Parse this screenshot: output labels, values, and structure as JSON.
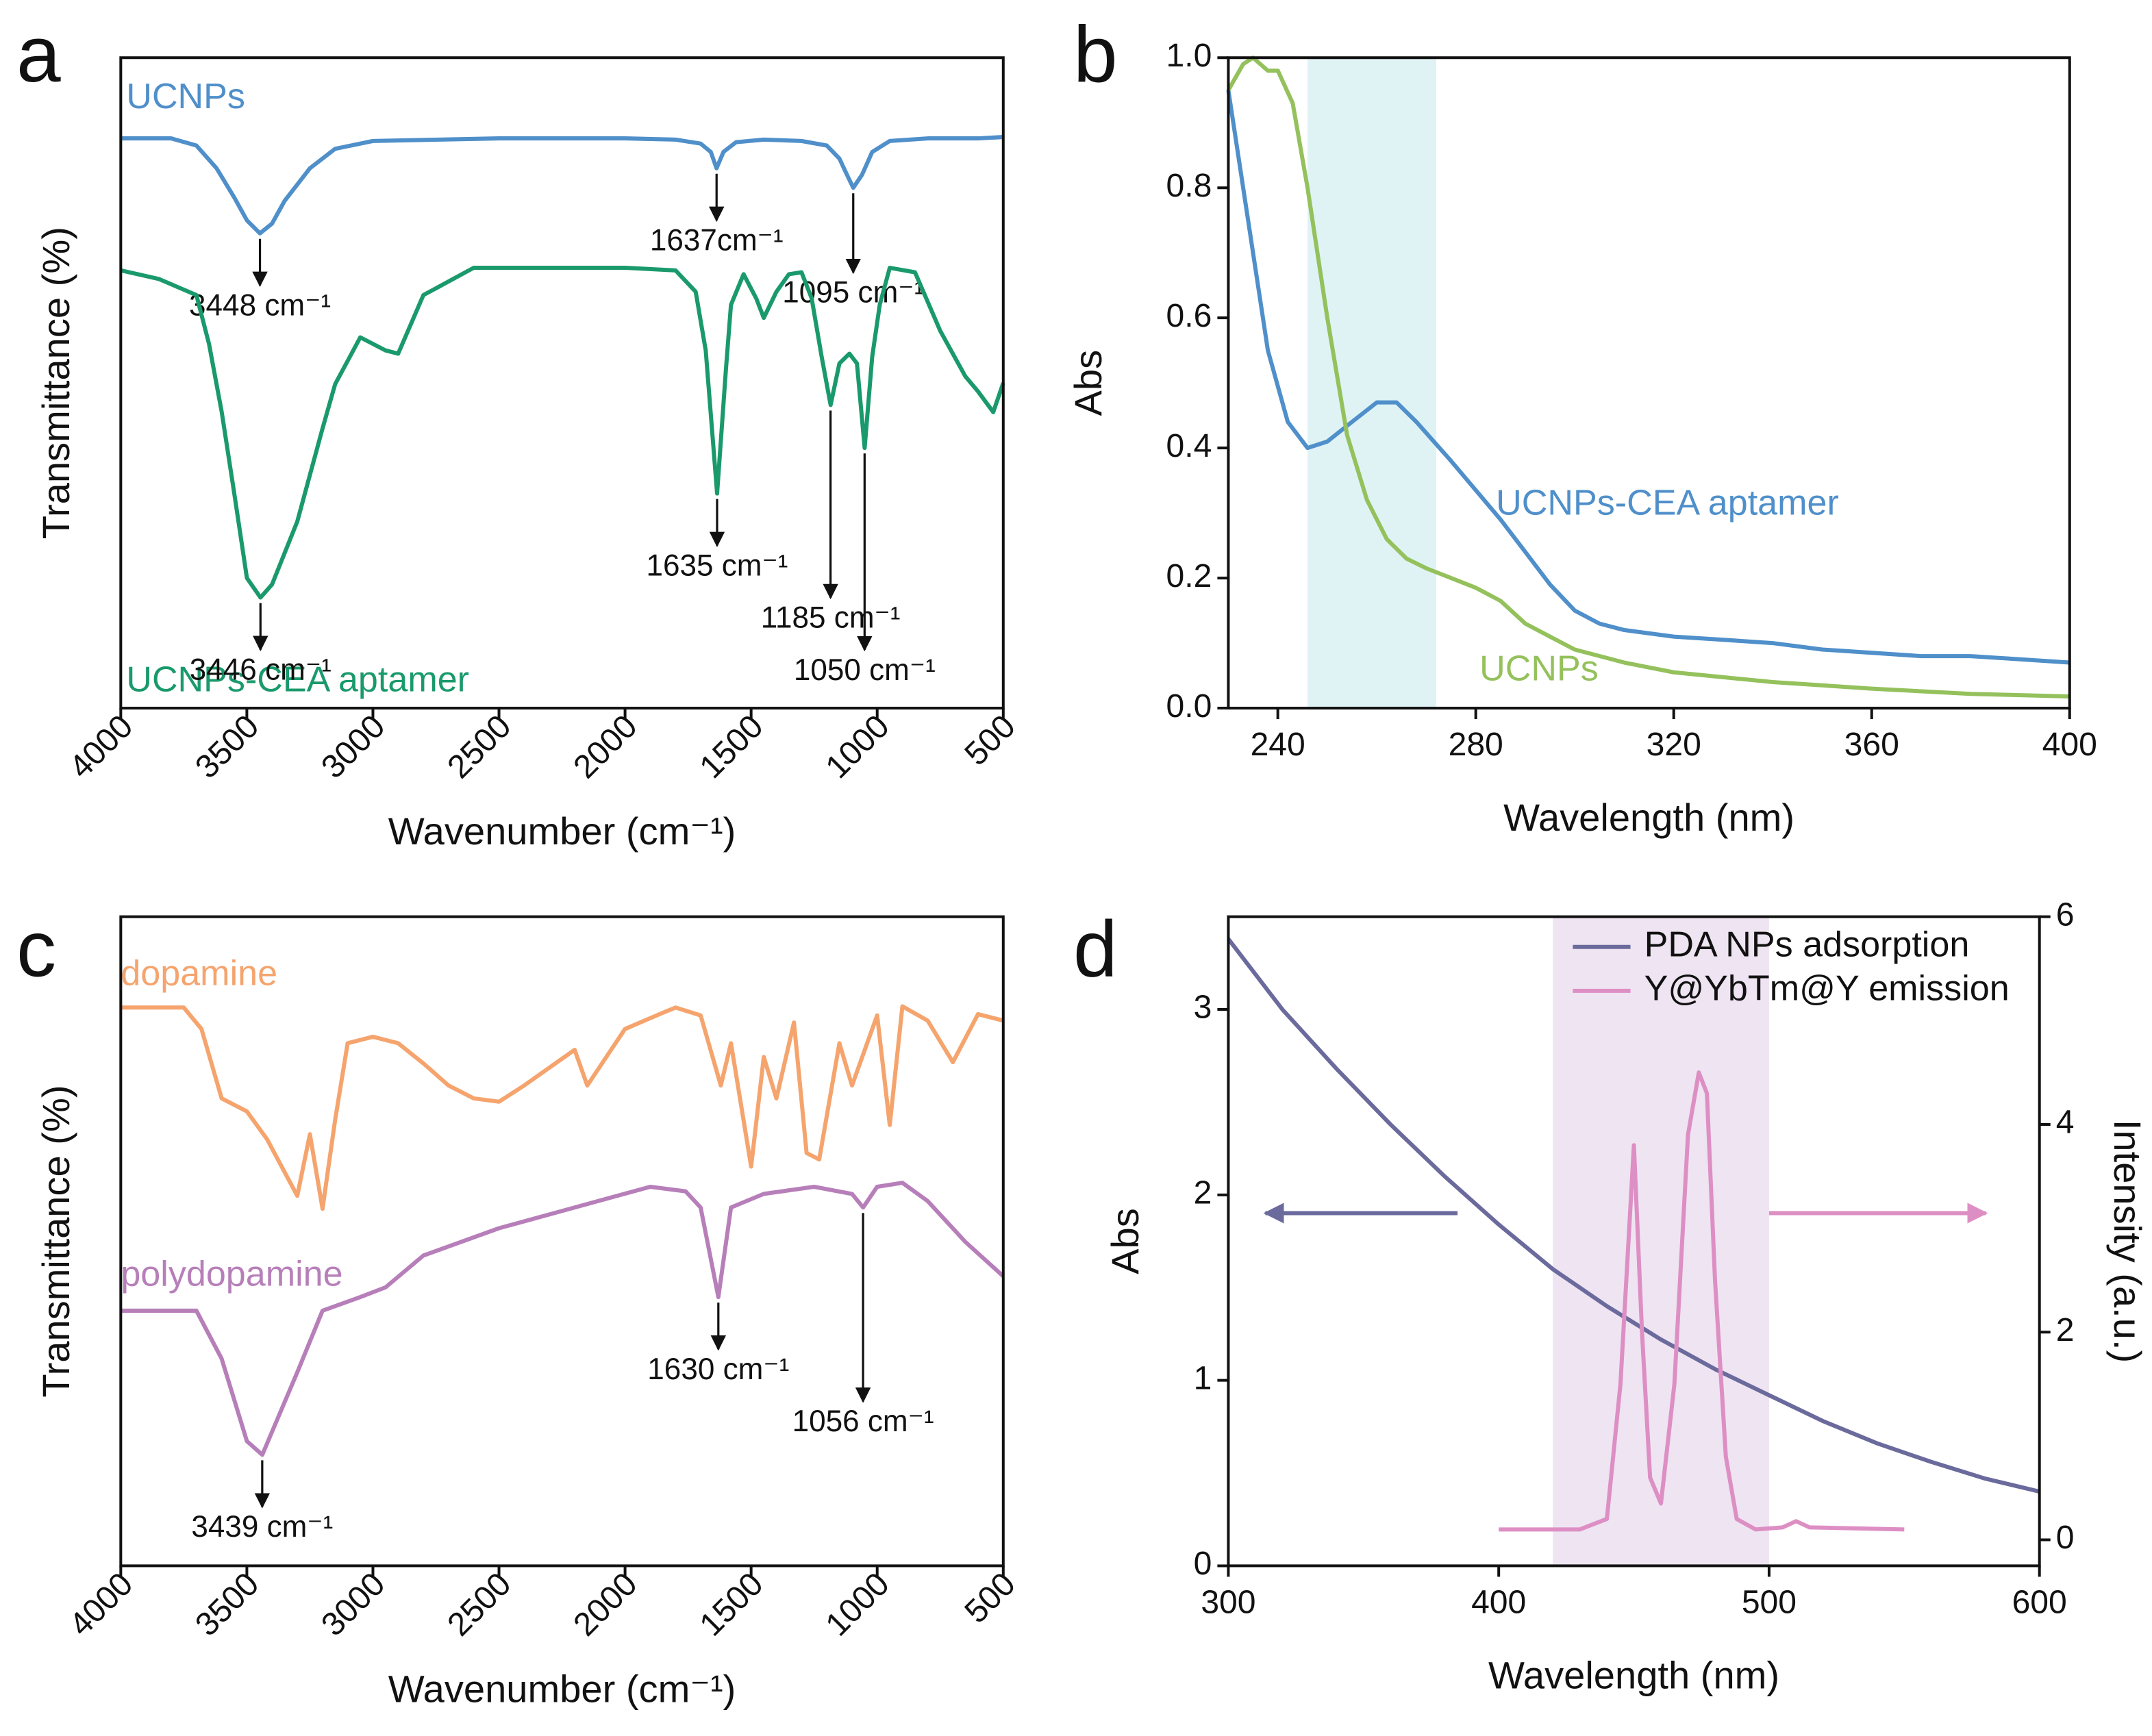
{
  "chart_data": [
    {
      "type": "line",
      "panel_label": "a",
      "xlabel": "Wavenumber (cm⁻¹)",
      "ylabel": "Transmittance (%)",
      "xlim": [
        4000,
        500
      ],
      "xticks": [
        4000,
        3500,
        3000,
        2500,
        2000,
        1500,
        1000,
        500
      ],
      "xtick_rotation": 45,
      "ylim": [
        0,
        100
      ],
      "series": [
        {
          "name": "UCNPs",
          "color": "#4f8fca",
          "x": [
            4000,
            3800,
            3700,
            3620,
            3550,
            3500,
            3448,
            3400,
            3350,
            3250,
            3150,
            3000,
            2500,
            2000,
            1800,
            1700,
            1660,
            1637,
            1610,
            1560,
            1450,
            1300,
            1200,
            1150,
            1120,
            1095,
            1060,
            1020,
            950,
            800,
            600,
            500
          ],
          "values": [
            87.6,
            87.6,
            86.5,
            83,
            78.5,
            75,
            73,
            74.5,
            78,
            83,
            86,
            87.2,
            87.6,
            87.6,
            87.4,
            86.8,
            85.5,
            83,
            85.5,
            87,
            87.4,
            87.2,
            86.5,
            84.5,
            82,
            80,
            82,
            85.5,
            87.2,
            87.6,
            87.6,
            87.8
          ],
          "annotations": [
            {
              "text": "3448 cm⁻¹",
              "x": 3448
            },
            {
              "text": "1637cm⁻¹",
              "x": 1637
            },
            {
              "text": "1095 cm⁻¹",
              "x": 1095
            }
          ]
        },
        {
          "name": "UCNPs-CEA aptamer",
          "color": "#1a9a6c",
          "x": [
            4000,
            3850,
            3700,
            3650,
            3600,
            3550,
            3500,
            3446,
            3400,
            3300,
            3200,
            3150,
            3050,
            2950,
            2900,
            2800,
            2600,
            2000,
            1800,
            1720,
            1680,
            1635,
            1600,
            1580,
            1530,
            1480,
            1450,
            1400,
            1350,
            1300,
            1260,
            1220,
            1185,
            1150,
            1110,
            1080,
            1050,
            1020,
            990,
            950,
            850,
            750,
            650,
            600,
            540,
            500
          ],
          "values": [
            67.3,
            66,
            63.5,
            56,
            45.6,
            33,
            20,
            17,
            19,
            28.7,
            43,
            49.8,
            57,
            55,
            54.5,
            63.5,
            67.7,
            67.7,
            67.3,
            64,
            55,
            33,
            52,
            62,
            66.7,
            63,
            60,
            64,
            66.7,
            67,
            63,
            54,
            46.6,
            53,
            54.5,
            53,
            40,
            54,
            62,
            67.7,
            67,
            58,
            51,
            48.7,
            45.5,
            50
          ],
          "annotations": [
            {
              "text": "3446 cm⁻¹",
              "x": 3446
            },
            {
              "text": "1635 cm⁻¹",
              "x": 1635
            },
            {
              "text": "1185 cm⁻¹",
              "x": 1185
            },
            {
              "text": "1050 cm⁻¹",
              "x": 1050
            }
          ]
        }
      ]
    },
    {
      "type": "line",
      "panel_label": "b",
      "xlabel": "Wavelength (nm)",
      "ylabel": "Abs",
      "xlim": [
        230,
        400
      ],
      "xticks": [
        240,
        280,
        320,
        360,
        400
      ],
      "ylim": [
        0,
        1
      ],
      "yticks": [
        {
          "value": 0,
          "label": "0.0"
        },
        0.2,
        0.4,
        0.6,
        0.8,
        {
          "value": 1,
          "label": "1.0"
        }
      ],
      "highlight": [
        246,
        272
      ],
      "series": [
        {
          "name": "UCNPs-CEA aptamer",
          "color": "#4f8fca",
          "x": [
            230,
            234,
            238,
            242,
            246,
            250,
            255,
            260,
            264,
            268,
            275,
            285,
            290,
            295,
            300,
            305,
            310,
            320,
            330,
            340,
            350,
            360,
            370,
            380,
            390,
            400
          ],
          "values": [
            0.95,
            0.75,
            0.55,
            0.44,
            0.4,
            0.41,
            0.44,
            0.47,
            0.47,
            0.44,
            0.38,
            0.29,
            0.24,
            0.19,
            0.15,
            0.13,
            0.12,
            0.11,
            0.105,
            0.1,
            0.09,
            0.085,
            0.08,
            0.08,
            0.075,
            0.07
          ]
        },
        {
          "name": "UCNPs",
          "color": "#94c15c",
          "x": [
            230,
            233,
            235,
            238,
            240,
            243,
            246,
            250,
            254,
            258,
            262,
            266,
            270,
            275,
            280,
            285,
            290,
            295,
            300,
            310,
            320,
            340,
            360,
            380,
            400
          ],
          "values": [
            0.95,
            0.99,
            1.0,
            0.98,
            0.98,
            0.93,
            0.8,
            0.6,
            0.42,
            0.32,
            0.26,
            0.23,
            0.215,
            0.2,
            0.185,
            0.165,
            0.13,
            0.11,
            0.09,
            0.07,
            0.055,
            0.04,
            0.03,
            0.022,
            0.018
          ]
        }
      ]
    },
    {
      "type": "line",
      "panel_label": "c",
      "xlabel": "Wavenumber (cm⁻¹)",
      "ylabel": "Transmittance (%)",
      "xlim": [
        4000,
        500
      ],
      "xticks": [
        4000,
        3500,
        3000,
        2500,
        2000,
        1500,
        1000,
        500
      ],
      "xtick_rotation": 45,
      "ylim": [
        0,
        100
      ],
      "series": [
        {
          "name": "dopamine",
          "color": "#f5a46e",
          "x": [
            4000,
            3750,
            3680,
            3600,
            3500,
            3420,
            3300,
            3250,
            3200,
            3150,
            3100,
            3000,
            2900,
            2800,
            2700,
            2600,
            2500,
            2400,
            2200,
            2150,
            2000,
            1850,
            1800,
            1700,
            1620,
            1580,
            1500,
            1450,
            1400,
            1330,
            1280,
            1230,
            1150,
            1100,
            1000,
            950,
            900,
            800,
            700,
            600,
            500
          ],
          "values": [
            86,
            86,
            82.7,
            72,
            70,
            65.7,
            57,
            66.5,
            55,
            68.7,
            80.5,
            81.5,
            80.5,
            77.4,
            74,
            72,
            71.5,
            74,
            79.5,
            74,
            82.7,
            85.2,
            86,
            84.8,
            74,
            80.5,
            61.5,
            78.4,
            72,
            83.7,
            63.6,
            62.6,
            80.5,
            74,
            84.8,
            67.9,
            86.2,
            84,
            77.6,
            85,
            84
          ]
        },
        {
          "name": "polydopamine",
          "color": "#b77fb9",
          "x": [
            4000,
            3700,
            3600,
            3500,
            3439,
            3300,
            3200,
            3050,
            2950,
            2800,
            2500,
            2200,
            1900,
            1760,
            1700,
            1630,
            1580,
            1450,
            1250,
            1100,
            1056,
            1000,
            900,
            800,
            650,
            500
          ],
          "values": [
            39.3,
            39.3,
            31.9,
            19.2,
            17.1,
            29.8,
            39.3,
            41.4,
            42.9,
            47.8,
            52,
            55.2,
            58.4,
            57.7,
            55.2,
            41.4,
            55.2,
            57.3,
            58.4,
            57.3,
            55.2,
            58.4,
            59,
            56.2,
            49.9,
            44.6
          ],
          "annotations": [
            {
              "text": "3439 cm⁻¹",
              "x": 3439
            },
            {
              "text": "1630 cm⁻¹",
              "x": 1630
            },
            {
              "text": "1056 cm⁻¹",
              "x": 1056
            }
          ]
        }
      ]
    },
    {
      "type": "line",
      "panel_label": "d",
      "xlabel": "Wavelength (nm)",
      "ylabel": "Abs",
      "y2label": "Intensity (a.u.)",
      "xlim": [
        300,
        600
      ],
      "xticks": [
        300,
        400,
        500,
        600
      ],
      "ylim": [
        0,
        3.5
      ],
      "yticks": [
        0,
        1,
        2,
        3
      ],
      "y2lim": [
        -0.25,
        6
      ],
      "y2ticks": [
        0,
        2,
        4,
        6
      ],
      "highlight": [
        420,
        500
      ],
      "legend": "upper right",
      "series": [
        {
          "name": "PDA NPs adsorption",
          "color": "#6b6a9c",
          "x": [
            300,
            320,
            340,
            360,
            380,
            400,
            420,
            440,
            460,
            480,
            500,
            520,
            540,
            560,
            580,
            600
          ],
          "values": [
            3.38,
            3.0,
            2.68,
            2.38,
            2.1,
            1.84,
            1.6,
            1.4,
            1.22,
            1.06,
            0.92,
            0.78,
            0.66,
            0.56,
            0.47,
            0.4
          ]
        },
        {
          "name": "Y@YbTm@Y emission",
          "color": "#dd8fc4",
          "axis": "y2",
          "x": [
            400,
            430,
            440,
            445,
            450,
            453,
            456,
            460,
            465,
            470,
            474,
            477,
            480,
            484,
            488,
            495,
            505,
            510,
            515,
            550
          ],
          "values": [
            0.1,
            0.1,
            0.2,
            1.5,
            3.8,
            2.0,
            0.6,
            0.35,
            1.5,
            3.9,
            4.5,
            4.3,
            2.5,
            0.8,
            0.2,
            0.1,
            0.12,
            0.18,
            0.12,
            0.1
          ]
        }
      ]
    }
  ]
}
